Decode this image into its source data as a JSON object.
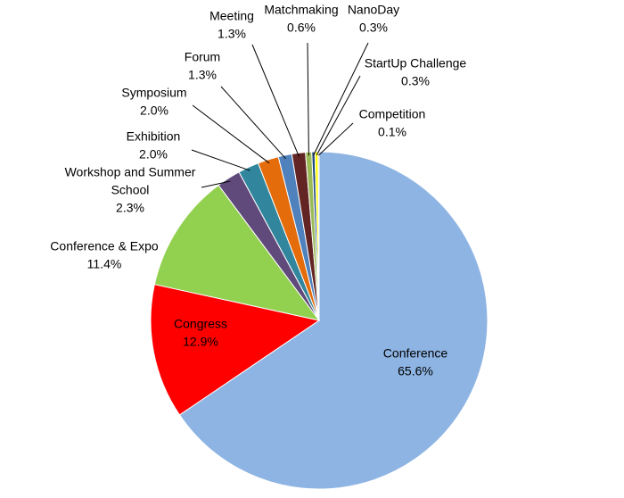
{
  "chart_data": {
    "type": "pie",
    "title": "",
    "slices": [
      {
        "label": [
          "Conference"
        ],
        "value": 65.6,
        "value_label": "65.6%",
        "color": "#8eb4e3"
      },
      {
        "label": [
          "Congress"
        ],
        "value": 12.9,
        "value_label": "12.9%",
        "color": "#ff0000"
      },
      {
        "label": [
          "Conference & Expo"
        ],
        "value": 11.4,
        "value_label": "11.4%",
        "color": "#92d050"
      },
      {
        "label": [
          "Workshop and Summer",
          "School"
        ],
        "value": 2.3,
        "value_label": "2.3%",
        "color": "#604a7b"
      },
      {
        "label": [
          "Exhibition"
        ],
        "value": 2.0,
        "value_label": "2.0%",
        "color": "#31859c"
      },
      {
        "label": [
          "Symposium"
        ],
        "value": 2.0,
        "value_label": "2.0%",
        "color": "#e46c0a"
      },
      {
        "label": [
          "Forum"
        ],
        "value": 1.3,
        "value_label": "1.3%",
        "color": "#4f81bd"
      },
      {
        "label": [
          "Meeting"
        ],
        "value": 1.3,
        "value_label": "1.3%",
        "color": "#632523"
      },
      {
        "label": [
          "Matchmaking"
        ],
        "value": 0.6,
        "value_label": "0.6%",
        "color": "#9bbb59"
      },
      {
        "label": [
          "NanoDay"
        ],
        "value": 0.3,
        "value_label": "0.3%",
        "color": "#1f497d"
      },
      {
        "label": [
          "StartUp Challenge"
        ],
        "value": 0.3,
        "value_label": "0.3%",
        "color": "#ffff00"
      },
      {
        "label": [
          "Competition"
        ],
        "value": 0.1,
        "value_label": "0.1%",
        "color": "#c0504d"
      }
    ],
    "start_angle_deg": 0,
    "direction": "clockwise",
    "legend": "none"
  }
}
